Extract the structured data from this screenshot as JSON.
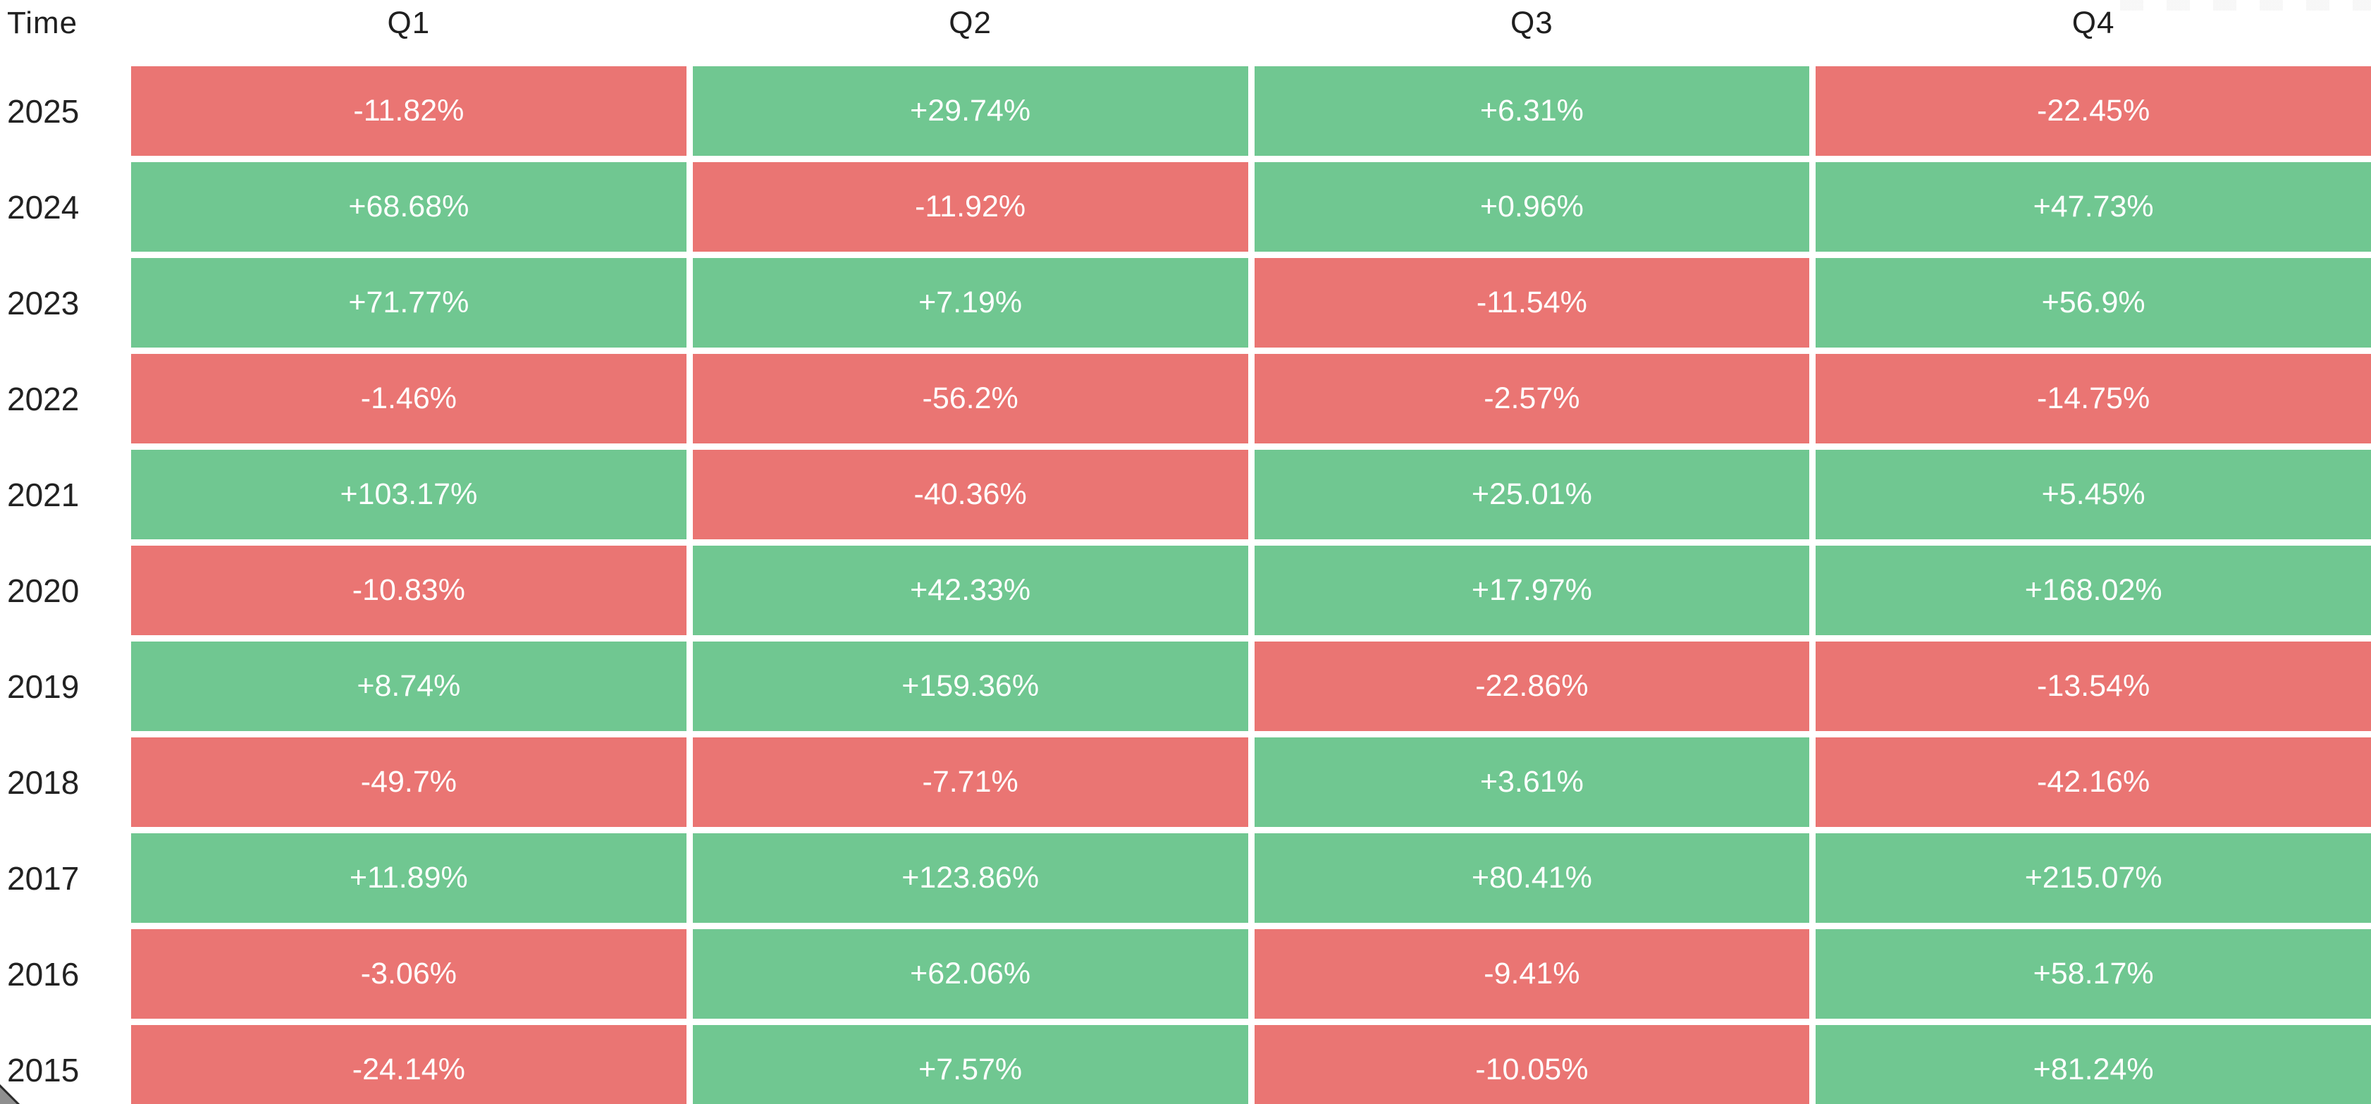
{
  "header": {
    "time_label": "Time",
    "columns": [
      "Q1",
      "Q2",
      "Q3",
      "Q4"
    ]
  },
  "colors": {
    "positive_cell": "#70c791",
    "negative_cell": "#ea7573",
    "cell_text": "#ffffff",
    "header_text": "#1f1f1f",
    "background": "#ffffff"
  },
  "chart_data": {
    "type": "heatmap",
    "row_header_label": "Time",
    "columns": [
      "Q1",
      "Q2",
      "Q3",
      "Q4"
    ],
    "rows": [
      "2025",
      "2024",
      "2023",
      "2022",
      "2021",
      "2020",
      "2019",
      "2018",
      "2017",
      "2016",
      "2015"
    ],
    "values": [
      [
        -11.82,
        29.74,
        6.31,
        -22.45
      ],
      [
        68.68,
        -11.92,
        0.96,
        47.73
      ],
      [
        71.77,
        7.19,
        -11.54,
        56.9
      ],
      [
        -1.46,
        -56.2,
        -2.57,
        -14.75
      ],
      [
        103.17,
        -40.36,
        25.01,
        5.45
      ],
      [
        -10.83,
        42.33,
        17.97,
        168.02
      ],
      [
        8.74,
        159.36,
        -22.86,
        -13.54
      ],
      [
        -49.7,
        -7.71,
        3.61,
        -42.16
      ],
      [
        11.89,
        123.86,
        80.41,
        215.07
      ],
      [
        -3.06,
        62.06,
        -9.41,
        58.17
      ],
      [
        -24.14,
        7.57,
        -10.05,
        81.24
      ]
    ],
    "display": [
      [
        "-11.82%",
        "+29.74%",
        "+6.31%",
        "-22.45%"
      ],
      [
        "+68.68%",
        "-11.92%",
        "+0.96%",
        "+47.73%"
      ],
      [
        "+71.77%",
        "+7.19%",
        "-11.54%",
        "+56.9%"
      ],
      [
        "-1.46%",
        "-56.2%",
        "-2.57%",
        "-14.75%"
      ],
      [
        "+103.17%",
        "-40.36%",
        "+25.01%",
        "+5.45%"
      ],
      [
        "-10.83%",
        "+42.33%",
        "+17.97%",
        "+168.02%"
      ],
      [
        "+8.74%",
        "+159.36%",
        "-22.86%",
        "-13.54%"
      ],
      [
        "-49.7%",
        "-7.71%",
        "+3.61%",
        "-42.16%"
      ],
      [
        "+11.89%",
        "+123.86%",
        "+80.41%",
        "+215.07%"
      ],
      [
        "-3.06%",
        "+62.06%",
        "-9.41%",
        "+58.17%"
      ],
      [
        "-24.14%",
        "+7.57%",
        "-10.05%",
        "+81.24%"
      ]
    ],
    "color_rule": "positive values green, negative values red",
    "legend": "none",
    "grid": "white gaps between cells"
  }
}
